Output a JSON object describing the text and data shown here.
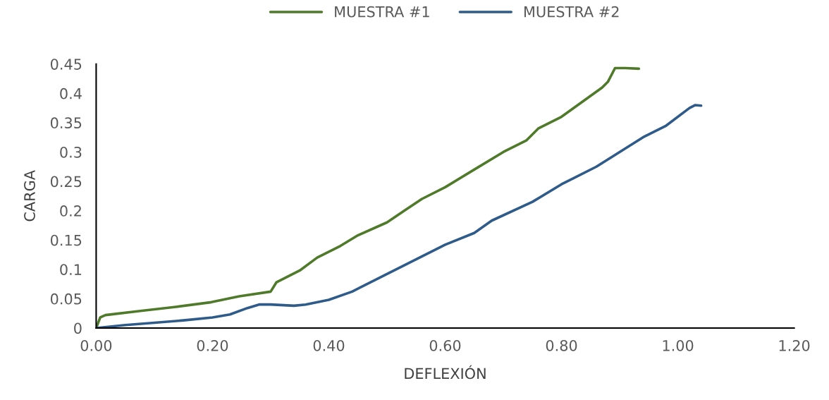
{
  "chart_data": {
    "type": "line",
    "xlabel": "DEFLEXIÓN",
    "ylabel": "CARGA",
    "xlim": [
      0,
      1.2
    ],
    "xticks": [
      {
        "value": 0,
        "label": "0.00"
      },
      {
        "value": 0.2,
        "label": "0.20"
      },
      {
        "value": 0.4,
        "label": "0.40"
      },
      {
        "value": 0.6,
        "label": "0.60"
      },
      {
        "value": 0.8,
        "label": "0.80"
      },
      {
        "value": 1.0,
        "label": "1.00"
      },
      {
        "value": 1.2,
        "label": "1.20"
      }
    ],
    "ylim": [
      0,
      0.45
    ],
    "yticks": [
      0,
      0.05,
      0.1,
      0.15,
      0.2,
      0.25,
      0.3,
      0.35,
      0.4,
      0.45
    ],
    "grid": false,
    "legend": "top",
    "marker": "none",
    "line_style": "solid",
    "series": [
      {
        "name": "MUESTRA #1",
        "color": "#4e7a2a",
        "x": [
          0,
          0.007,
          0.016,
          0.076,
          0.137,
          0.198,
          0.246,
          0.3,
          0.31,
          0.35,
          0.38,
          0.42,
          0.45,
          0.5,
          0.53,
          0.56,
          0.6,
          0.65,
          0.7,
          0.74,
          0.76,
          0.8,
          0.87,
          0.88,
          0.892,
          0.91,
          0.933
        ],
        "values": [
          0,
          0.018,
          0.022,
          0.029,
          0.036,
          0.044,
          0.054,
          0.062,
          0.078,
          0.098,
          0.12,
          0.14,
          0.158,
          0.18,
          0.2,
          0.22,
          0.24,
          0.27,
          0.3,
          0.32,
          0.34,
          0.36,
          0.41,
          0.42,
          0.443,
          0.443,
          0.442
        ]
      },
      {
        "name": "MUESTRA #2",
        "color": "#2e5b8a",
        "x": [
          0,
          0.05,
          0.1,
          0.15,
          0.2,
          0.23,
          0.26,
          0.28,
          0.3,
          0.34,
          0.36,
          0.4,
          0.44,
          0.5,
          0.55,
          0.6,
          0.65,
          0.68,
          0.75,
          0.8,
          0.86,
          0.9,
          0.94,
          0.98,
          1.02,
          1.03,
          1.04
        ],
        "values": [
          0,
          0.005,
          0.009,
          0.013,
          0.018,
          0.023,
          0.034,
          0.04,
          0.04,
          0.038,
          0.04,
          0.048,
          0.062,
          0.092,
          0.117,
          0.142,
          0.162,
          0.183,
          0.215,
          0.245,
          0.275,
          0.3,
          0.325,
          0.345,
          0.375,
          0.38,
          0.379
        ]
      }
    ]
  }
}
